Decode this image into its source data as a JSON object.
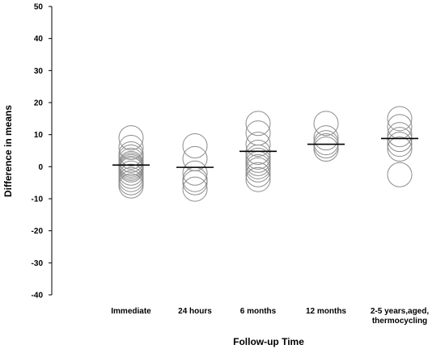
{
  "chart_data": {
    "type": "scatter",
    "title": "",
    "xlabel": "Follow-up Time",
    "ylabel": "Difference in means",
    "ylim": [
      -40,
      50
    ],
    "yticks": [
      -40,
      -30,
      -20,
      -10,
      0,
      10,
      20,
      30,
      40,
      50
    ],
    "grid": false,
    "legend": "none",
    "categories": [
      {
        "label": "Immediate",
        "lines": [
          "Immediate"
        ]
      },
      {
        "label": "24 hours",
        "lines": [
          "24 hours"
        ]
      },
      {
        "label": "6 months",
        "lines": [
          "6 months"
        ]
      },
      {
        "label": "12 months",
        "lines": [
          "12 months"
        ]
      },
      {
        "label": "2-5 years,aged, thermocycling",
        "lines": [
          "2-5 years,aged,",
          "thermocycling"
        ]
      }
    ],
    "means": [
      0.5,
      -0.2,
      4.8,
      7.0,
      8.8
    ],
    "points": [
      [
        9,
        6,
        4,
        3,
        2,
        1,
        0.5,
        0,
        -0.5,
        -1,
        -2,
        -3,
        -4,
        -5,
        -6
      ],
      [
        6.5,
        2.5,
        -2,
        -4,
        -5,
        -7
      ],
      [
        13.5,
        10.5,
        7,
        4.5,
        3,
        2,
        1,
        0,
        -1,
        -2.5,
        -4
      ],
      [
        13.5,
        9,
        7.5,
        6.5,
        5.5
      ],
      [
        15,
        12.5,
        10,
        8.5,
        7,
        5.5,
        -2.5
      ]
    ],
    "colors": {
      "points": "#8c8c8c",
      "mean_line": "#000000",
      "axis": "#000000"
    }
  }
}
